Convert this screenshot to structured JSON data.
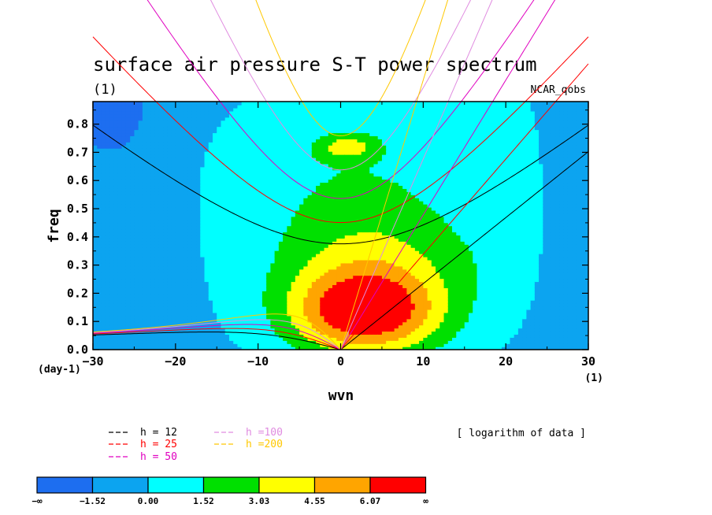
{
  "chart_data": {
    "type": "heatmap",
    "title": "surface air pressure S-T power spectrum",
    "subtitle": "(1)",
    "dataset": "NCAR_qobs",
    "xlabel": "wvn",
    "ylabel": "freq",
    "x_units": "(1)",
    "y_units": "(day-1)",
    "xlim": [
      -30,
      30
    ],
    "ylim": [
      0,
      0.88
    ],
    "x_ticks": [
      "−30",
      "−20",
      "−10",
      "0",
      "10",
      "20",
      "30"
    ],
    "x_tick_values": [
      -30,
      -20,
      -10,
      0,
      10,
      20,
      30
    ],
    "y_ticks": [
      "0.0",
      "0.1",
      "0.2",
      "0.3",
      "0.4",
      "0.5",
      "0.6",
      "0.7",
      "0.8"
    ],
    "y_tick_values": [
      0,
      0.1,
      0.2,
      0.3,
      0.4,
      0.5,
      0.6,
      0.7,
      0.8
    ],
    "note": "[ logarithm of data ]",
    "colorbar": {
      "labels": [
        "−∞",
        "−1.52",
        "0.00",
        "1.52",
        "3.03",
        "4.55",
        "6.07",
        "∞"
      ],
      "colors": [
        "#1d6ef0",
        "#0ca4f0",
        "#00ffff",
        "#00e000",
        "#ffff00",
        "#ffa500",
        "#ff0000"
      ]
    },
    "dispersion_curves": [
      {
        "label": "h = 12",
        "color": "#000000",
        "h": 12
      },
      {
        "label": "h = 25",
        "color": "#ff0000",
        "h": 25
      },
      {
        "label": "h = 50",
        "color": "#e000c0",
        "h": 50
      },
      {
        "label": "h =100",
        "color": "#e08ce0",
        "h": 100
      },
      {
        "label": "h =200",
        "color": "#ffc800",
        "h": 200
      }
    ],
    "field_peaks": [
      {
        "x": 3,
        "y": 0.13,
        "value": 6.5
      },
      {
        "x": 4,
        "y": 0.3,
        "value": 3.8
      },
      {
        "x": 0.8,
        "y": 0.72,
        "value": 4.0
      },
      {
        "x": -27,
        "y": 0.85,
        "value": -2.2
      },
      {
        "x": 20,
        "y": 0.6,
        "value": 1.1
      },
      {
        "x": 27,
        "y": 0.15,
        "value": -0.5
      },
      {
        "x": -25,
        "y": 0.3,
        "value": -0.3
      }
    ]
  }
}
